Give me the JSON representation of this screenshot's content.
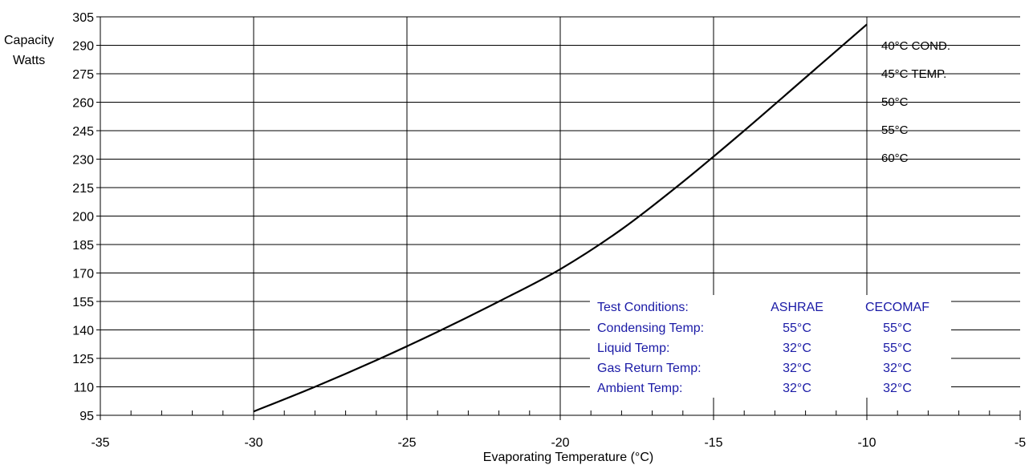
{
  "chart_data": {
    "type": "line",
    "title": "",
    "xlabel": "Evaporating Temperature  (°C)",
    "ylabel_lines": [
      "Capacity",
      "Watts"
    ],
    "xlim": [
      -35,
      -5
    ],
    "ylim": [
      95,
      305
    ],
    "xticks": [
      -35,
      -30,
      -25,
      -20,
      -15,
      -10,
      -5
    ],
    "yticks": [
      95,
      110,
      125,
      140,
      155,
      170,
      185,
      200,
      215,
      230,
      245,
      260,
      275,
      290,
      305
    ],
    "grid": true,
    "series": [
      {
        "name": "",
        "color": "#000000",
        "x": [
          -30,
          -28,
          -26,
          -24,
          -22,
          -20,
          -18,
          -16,
          -14,
          -12,
          -10
        ],
        "y": [
          97,
          110,
          124,
          139,
          155,
          172,
          193,
          218,
          245,
          273,
          301
        ]
      }
    ],
    "legend_labels": [
      "40°C COND.",
      "45°C TEMP.",
      "50°C",
      "55°C",
      "60°C"
    ],
    "test_conditions": {
      "headers": [
        "Test Conditions:",
        "ASHRAE",
        "CECOMAF"
      ],
      "rows": [
        [
          "Condensing Temp:",
          "55°C",
          "55°C"
        ],
        [
          "Liquid Temp:",
          "32°C",
          "55°C"
        ],
        [
          "Gas Return Temp:",
          "32°C",
          "32°C"
        ],
        [
          "Ambient Temp:",
          "32°C",
          "32°C"
        ]
      ]
    }
  }
}
